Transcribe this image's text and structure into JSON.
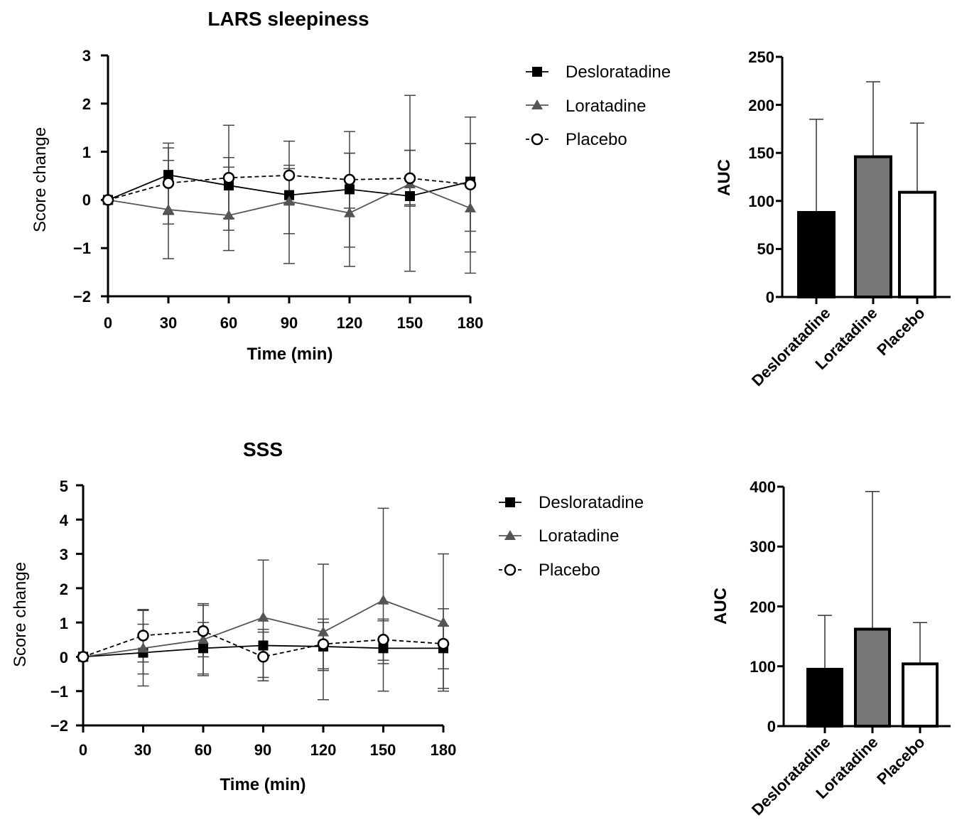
{
  "chart_data": [
    {
      "type": "line",
      "title": "LARS sleepiness",
      "xlabel": "Time (min)",
      "ylabel": "Score change",
      "x": [
        0,
        30,
        60,
        90,
        120,
        150,
        180
      ],
      "xticks": [
        "0",
        "30",
        "60",
        "90",
        "120",
        "150",
        "180"
      ],
      "yticks": [
        "3",
        "2",
        "1",
        "0",
        "−1",
        "−2"
      ],
      "ylim": [
        -2,
        3
      ],
      "xlim": [
        0,
        180
      ],
      "legend": "right",
      "series": [
        {
          "name": "Desloratadine",
          "marker": "filled-square",
          "line": "solid",
          "color": "#000000",
          "values": [
            0,
            0.52,
            0.3,
            0.1,
            0.22,
            0.08,
            0.38
          ],
          "err_upper": [
            0,
            1.18,
            0.88,
            0.72,
            0.97,
            1.03,
            1.17
          ],
          "err_lower": [
            0,
            -0.5,
            -0.63,
            -0.7,
            -0.98,
            -0.1,
            -0.65
          ]
        },
        {
          "name": "Loratadine",
          "marker": "filled-triangle",
          "line": "solid",
          "color": "#555555",
          "values": [
            0,
            -0.2,
            -0.32,
            -0.03,
            -0.27,
            0.33,
            -0.17
          ],
          "err_upper": [
            0,
            0.82,
            0.68,
            0.65,
            0.97,
            2.17,
            1.17
          ],
          "err_lower": [
            0,
            -1.22,
            -1.05,
            -1.32,
            -1.38,
            -1.48,
            -1.52
          ]
        },
        {
          "name": "Placebo",
          "marker": "open-circle",
          "line": "dashed",
          "color": "#000000",
          "values": [
            0,
            0.35,
            0.46,
            0.51,
            0.42,
            0.45,
            0.32
          ],
          "err_upper": [
            0,
            1.08,
            1.55,
            1.22,
            1.42,
            1.03,
            1.72
          ],
          "err_lower": [
            0,
            -0.3,
            -0.38,
            -0.08,
            -0.17,
            -0.13,
            -1.08
          ]
        }
      ]
    },
    {
      "type": "bar",
      "ylabel": "AUC",
      "categories": [
        "Desloratadine",
        "Loratadine",
        "Placebo"
      ],
      "values": [
        88,
        146,
        109
      ],
      "err_upper": [
        185,
        224,
        181
      ],
      "colors": [
        "#000000",
        "#777777",
        "#ffffff"
      ],
      "yticks": [
        "250",
        "200",
        "150",
        "100",
        "50",
        "0"
      ],
      "ylim": [
        0,
        250
      ]
    },
    {
      "type": "line",
      "title": "SSS",
      "xlabel": "Time (min)",
      "ylabel": "Score change",
      "x": [
        0,
        30,
        60,
        90,
        120,
        150,
        180
      ],
      "xticks": [
        "0",
        "30",
        "60",
        "90",
        "120",
        "150",
        "180"
      ],
      "yticks": [
        "5",
        "4",
        "3",
        "2",
        "1",
        "0",
        "−1",
        "−2"
      ],
      "ylim": [
        -2,
        5
      ],
      "xlim": [
        0,
        180
      ],
      "legend": "right",
      "series": [
        {
          "name": "Desloratadine",
          "marker": "filled-square",
          "line": "solid",
          "color": "#000000",
          "values": [
            0,
            0.12,
            0.25,
            0.33,
            0.3,
            0.25,
            0.25
          ],
          "err_upper": [
            0,
            0.95,
            1.0,
            0.8,
            1.0,
            1.05,
            0.9
          ],
          "err_lower": [
            0,
            -0.5,
            -0.5,
            -0.6,
            -0.35,
            -0.2,
            -0.35
          ]
        },
        {
          "name": "Loratadine",
          "marker": "filled-triangle",
          "line": "solid",
          "color": "#555555",
          "values": [
            0,
            0.25,
            0.5,
            1.15,
            0.72,
            1.65,
            1.0
          ],
          "err_upper": [
            0,
            1.35,
            1.55,
            2.82,
            2.7,
            4.33,
            3.0
          ],
          "err_lower": [
            0,
            -0.85,
            -0.55,
            -0.7,
            -1.25,
            -1.0,
            -1.0
          ]
        },
        {
          "name": "Placebo",
          "marker": "open-circle",
          "line": "dashed",
          "color": "#000000",
          "values": [
            0,
            0.62,
            0.75,
            0.0,
            0.37,
            0.5,
            0.38
          ],
          "err_upper": [
            0,
            1.38,
            1.5,
            0.72,
            1.1,
            1.1,
            1.4
          ],
          "err_lower": [
            0,
            -0.15,
            0.0,
            -0.7,
            -0.4,
            -0.1,
            -0.92
          ]
        }
      ]
    },
    {
      "type": "bar",
      "ylabel": "AUC",
      "categories": [
        "Desloratadine",
        "Loratadine",
        "Placebo"
      ],
      "values": [
        95,
        162,
        104
      ],
      "err_upper": [
        185,
        392,
        173
      ],
      "colors": [
        "#000000",
        "#777777",
        "#ffffff"
      ],
      "yticks": [
        "400",
        "300",
        "200",
        "100",
        "0"
      ],
      "ylim": [
        0,
        400
      ]
    }
  ]
}
